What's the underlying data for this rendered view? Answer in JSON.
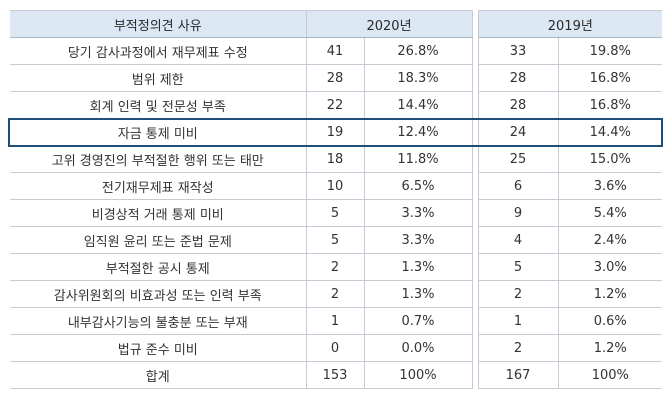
{
  "header": {
    "reason": "부적정의견 사유",
    "year_2020": "2020년",
    "year_2019": "2019년"
  },
  "rows": [
    {
      "reason": "당기 감사과정에서 재무제표 수정",
      "c2020": "41",
      "p2020": "26.8%",
      "c2019": "33",
      "p2019": "19.8%"
    },
    {
      "reason": "범위 제한",
      "c2020": "28",
      "p2020": "18.3%",
      "c2019": "28",
      "p2019": "16.8%"
    },
    {
      "reason": "회계 인력 및 전문성 부족",
      "c2020": "22",
      "p2020": "14.4%",
      "c2019": "28",
      "p2019": "16.8%"
    },
    {
      "reason": "자금 통제 미비",
      "c2020": "19",
      "p2020": "12.4%",
      "c2019": "24",
      "p2019": "14.4%"
    },
    {
      "reason": "고위 경영진의 부적절한 행위 또는 태만",
      "c2020": "18",
      "p2020": "11.8%",
      "c2019": "25",
      "p2019": "15.0%"
    },
    {
      "reason": "전기재무제표 재작성",
      "c2020": "10",
      "p2020": "6.5%",
      "c2019": "6",
      "p2019": "3.6%"
    },
    {
      "reason": "비경상적 거래 통제 미비",
      "c2020": "5",
      "p2020": "3.3%",
      "c2019": "9",
      "p2019": "5.4%"
    },
    {
      "reason": "임직원 윤리 또는 준법 문제",
      "c2020": "5",
      "p2020": "3.3%",
      "c2019": "4",
      "p2019": "2.4%"
    },
    {
      "reason": "부적절한 공시 통제",
      "c2020": "2",
      "p2020": "1.3%",
      "c2019": "5",
      "p2019": "3.0%"
    },
    {
      "reason": "감사위원회의 비효과성 또는 인력 부족",
      "c2020": "2",
      "p2020": "1.3%",
      "c2019": "2",
      "p2019": "1.2%"
    },
    {
      "reason": "내부감사기능의 불충분 또는 부재",
      "c2020": "1",
      "p2020": "0.7%",
      "c2019": "1",
      "p2019": "0.6%"
    },
    {
      "reason": "법규 준수 미비",
      "c2020": "0",
      "p2020": "0.0%",
      "c2019": "2",
      "p2019": "1.2%"
    },
    {
      "reason": "합계",
      "c2020": "153",
      "p2020": "100%",
      "c2019": "167",
      "p2019": "100%"
    }
  ],
  "highlighted_row_reason": "자금 통제 미비",
  "colors": {
    "header_bg": "#dbe7f3",
    "highlight_border": "#1f4e79",
    "grid": "#c8ccd2"
  }
}
